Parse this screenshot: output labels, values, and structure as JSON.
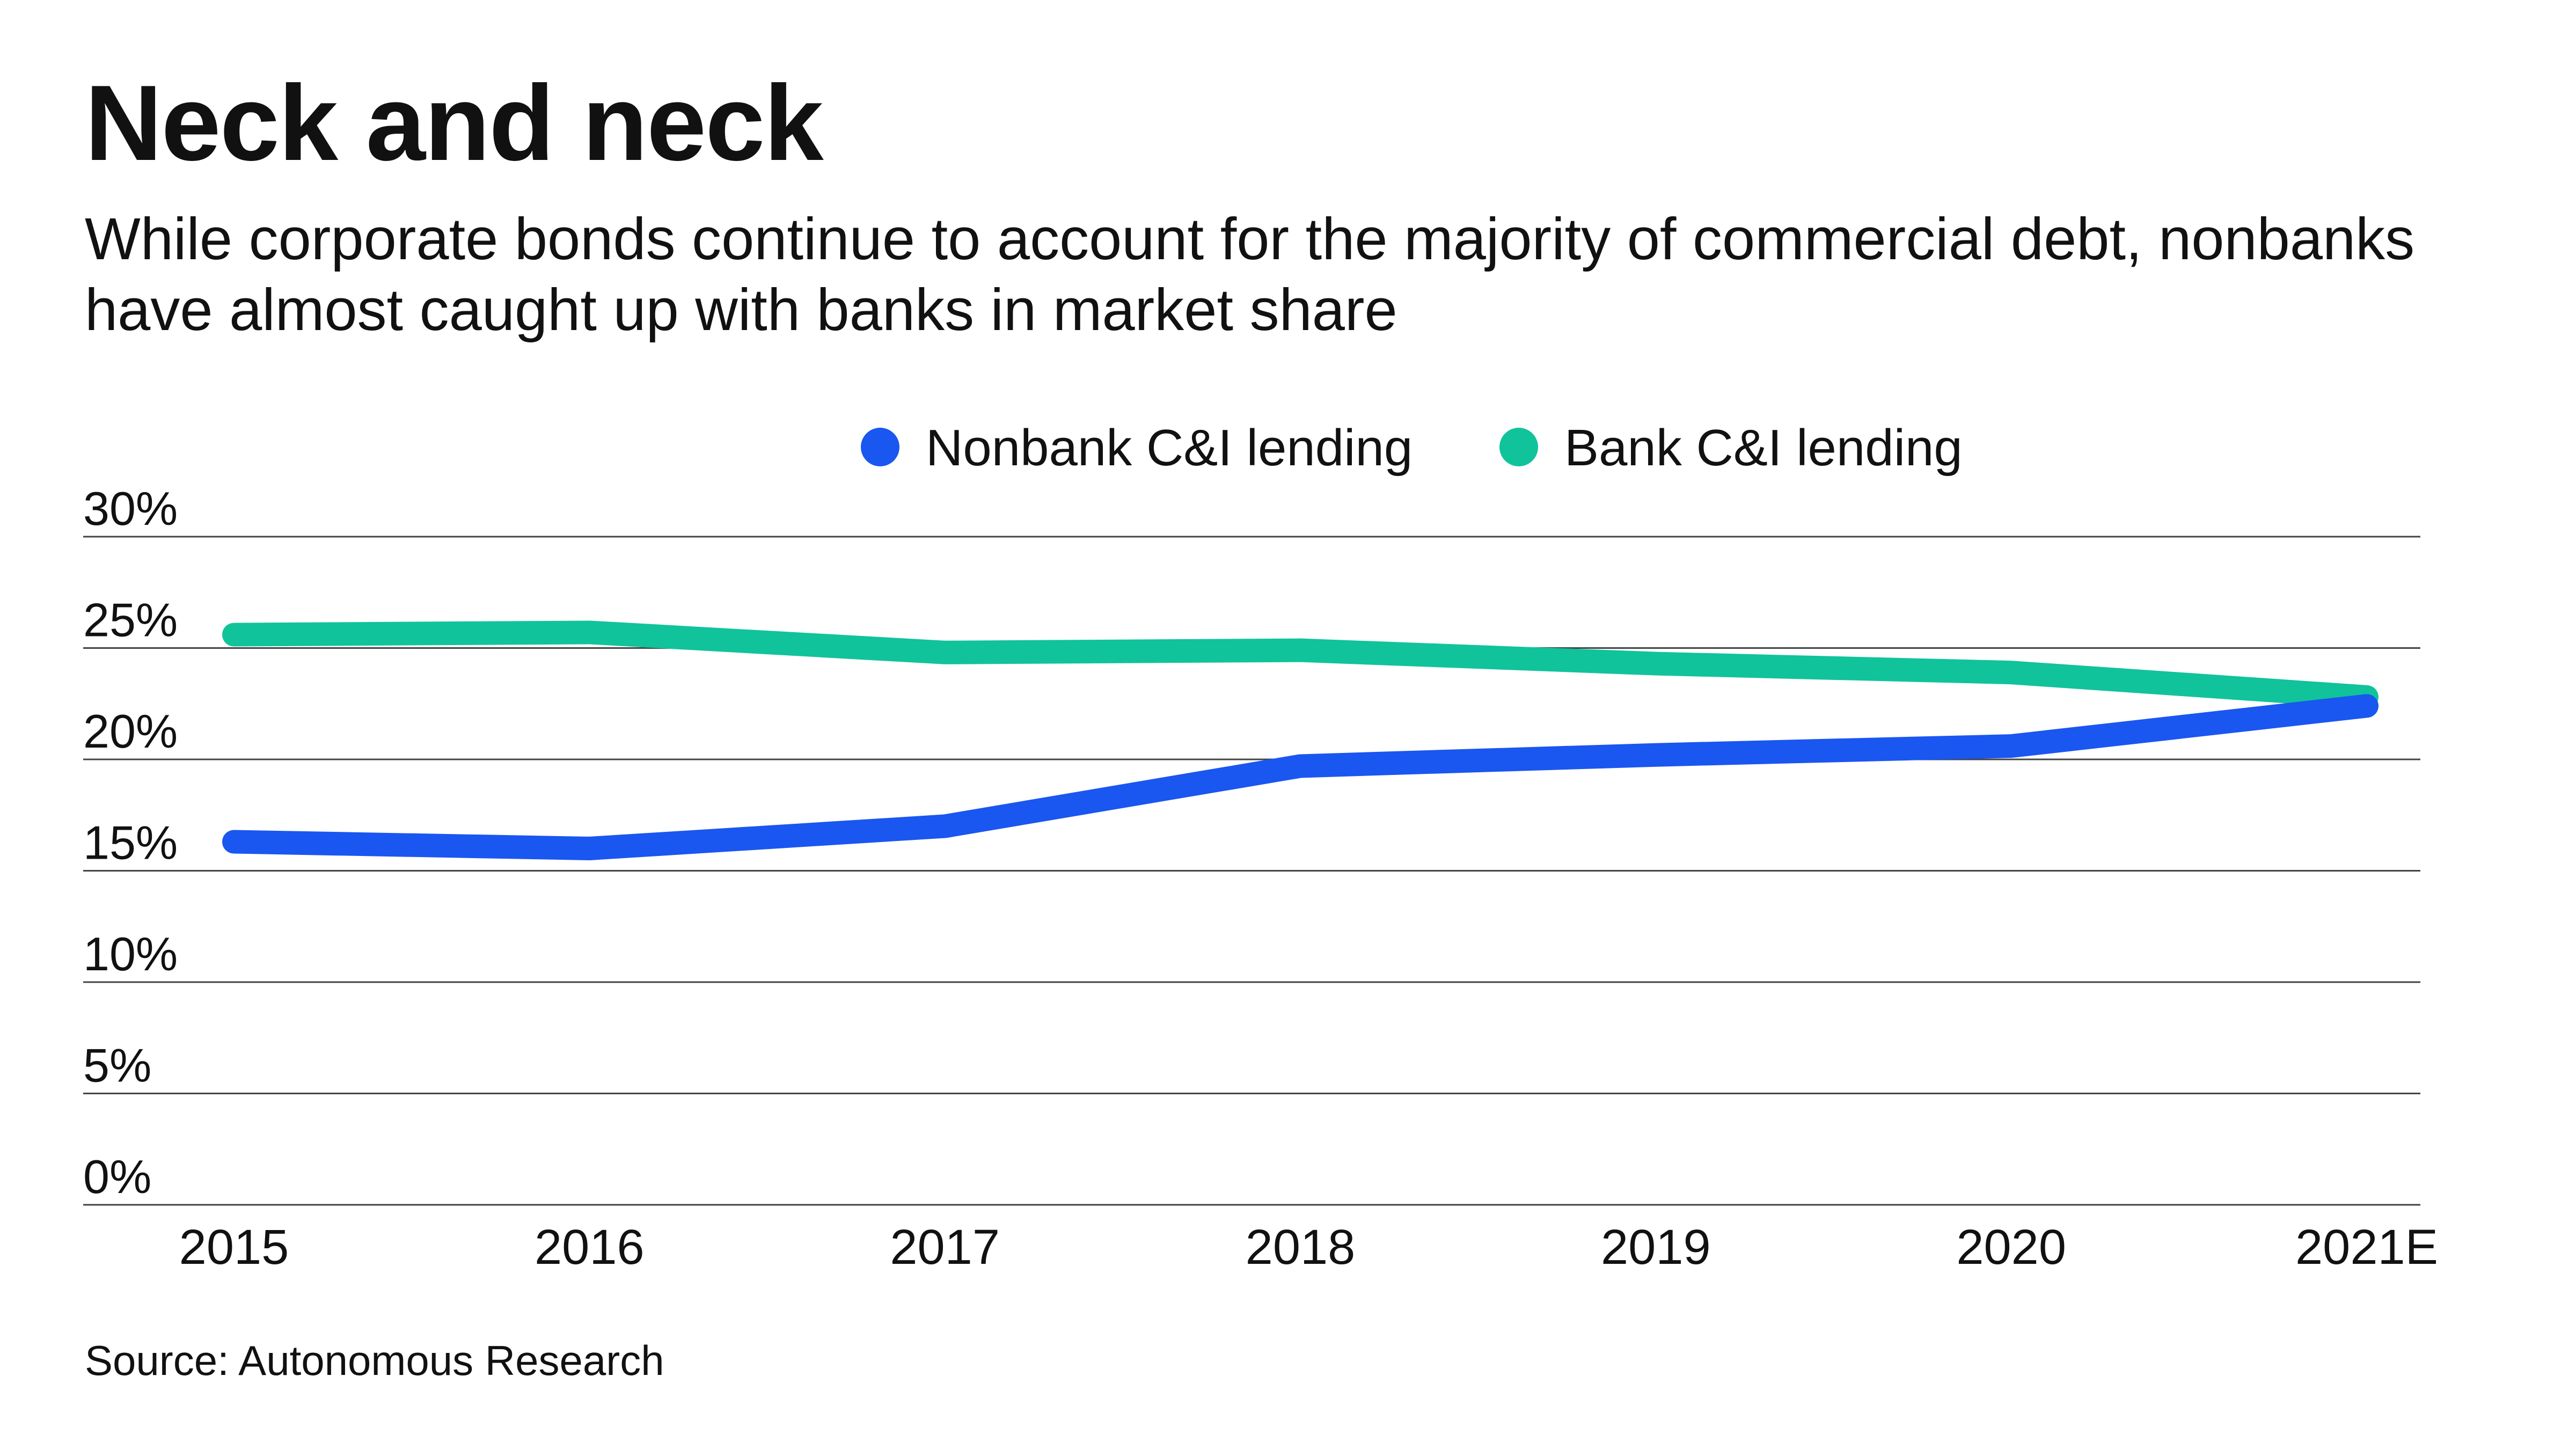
{
  "header": {
    "title": "Neck and neck",
    "subtitle": "While corporate bonds continue to account for the majority of commercial debt, nonbanks have almost caught up with banks in market share"
  },
  "footer": {
    "source": "Source: Autonomous Research"
  },
  "chart_data": {
    "type": "line",
    "x": [
      "2015",
      "2016",
      "2017",
      "2018",
      "2019",
      "2020",
      "2021E"
    ],
    "series": [
      {
        "name": "Nonbank C&I lending",
        "color": "#1a56f0",
        "values": [
          16.3,
          16.0,
          17.0,
          19.7,
          20.2,
          20.6,
          22.4
        ]
      },
      {
        "name": "Bank C&I lending",
        "color": "#10c39b",
        "values": [
          25.6,
          25.7,
          24.8,
          24.9,
          24.3,
          23.9,
          22.8
        ]
      }
    ],
    "ylim": [
      0,
      30
    ],
    "yticks": [
      0,
      5,
      10,
      15,
      20,
      25,
      30
    ],
    "ytick_labels": [
      "0%",
      "5%",
      "10%",
      "15%",
      "20%",
      "25%",
      "30%"
    ],
    "grid": true,
    "legend": "top-center",
    "xlabel": "",
    "ylabel": ""
  }
}
